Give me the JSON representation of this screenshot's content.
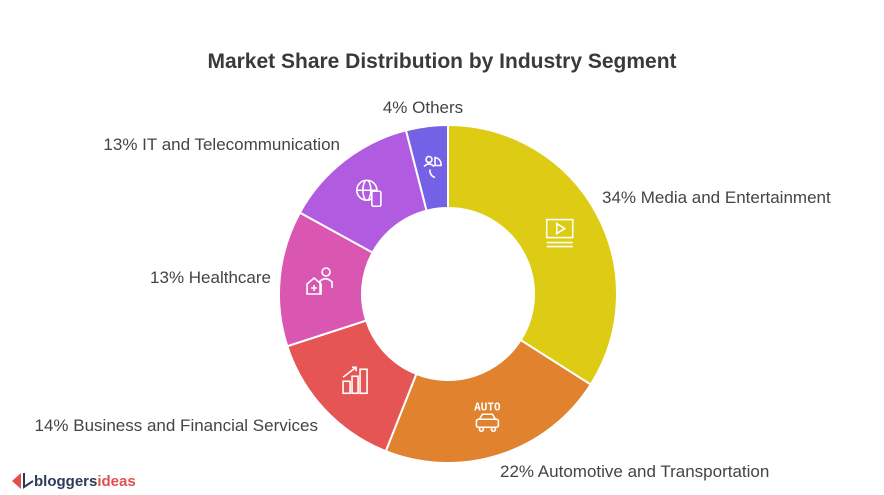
{
  "chart_data": {
    "type": "pie",
    "variant": "donut",
    "title": "Market Share Distribution by Industry Segment",
    "slices": [
      {
        "label": "34% Media and Entertainment",
        "value": 34,
        "color": "#DDCB14",
        "icon": "film-icon"
      },
      {
        "label": "22% Automotive and Transportation",
        "value": 22,
        "color": "#E0822E",
        "icon": "car-icon",
        "icon_text": "AUTO"
      },
      {
        "label": "14% Business and Financial Services",
        "value": 14,
        "color": "#E55553",
        "icon": "growth-chart-icon"
      },
      {
        "label": "13% Healthcare",
        "value": 13,
        "color": "#D957B0",
        "icon": "health-person-icon"
      },
      {
        "label": "13% IT and Telecommunication",
        "value": 13,
        "color": "#B15BE0",
        "icon": "globe-phone-icon"
      },
      {
        "label": "4% Others",
        "value": 4,
        "color": "#7561E6",
        "icon": "people-pie-icon"
      }
    ]
  },
  "brand": {
    "part1": "bloggers",
    "part2": "ideas"
  }
}
